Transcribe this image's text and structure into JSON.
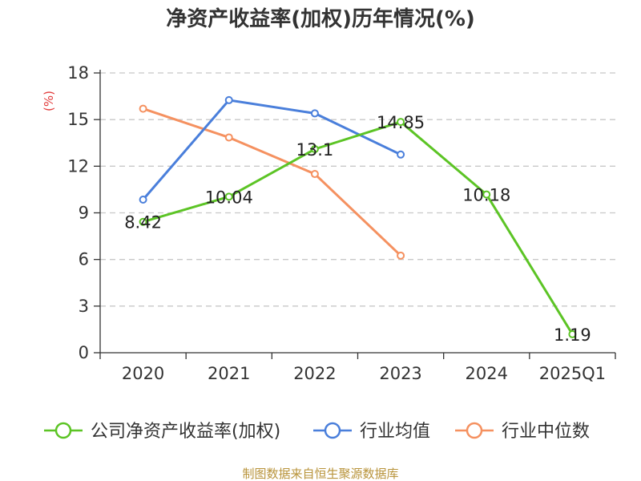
{
  "chart_data": {
    "type": "line",
    "title": "净资产收益率(加权)历年情况(%)",
    "ylabel": "(%)",
    "xlabel": "",
    "categories": [
      "2020",
      "2021",
      "2022",
      "2023",
      "2024",
      "2025Q1"
    ],
    "ylim": [
      0,
      18
    ],
    "yticks": [
      0,
      3,
      6,
      9,
      12,
      15,
      18
    ],
    "grid": true,
    "legend_position": "bottom",
    "series": [
      {
        "name": "公司净资产收益率(加权)",
        "color": "#5cc425",
        "values": [
          8.42,
          10.04,
          13.1,
          14.85,
          10.18,
          1.19
        ],
        "labels": [
          "8.42",
          "10.04",
          "13.1",
          "14.85",
          "10.18",
          "1.19"
        ]
      },
      {
        "name": "行业均值",
        "color": "#4a7fdb",
        "values": [
          9.85,
          16.25,
          15.4,
          12.75,
          null,
          null
        ]
      },
      {
        "name": "行业中位数",
        "color": "#f59160",
        "values": [
          15.7,
          13.85,
          11.5,
          6.25,
          null,
          null
        ]
      }
    ]
  },
  "source_text": "制图数据来自恒生聚源数据库"
}
